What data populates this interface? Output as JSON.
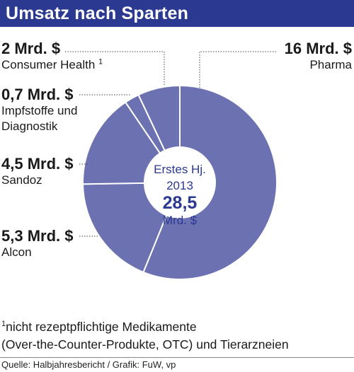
{
  "title": "Umsatz nach Sparten",
  "colors": {
    "header_bg": "#2b3990",
    "slice_fill": "#6c71b1",
    "slice_stroke": "#ffffff",
    "center_text": "#2b3990",
    "leader": "#444444"
  },
  "center": {
    "line1": "Erstes Hj.",
    "line2": "2013",
    "total": "28,5",
    "unit": "Mrd. $"
  },
  "chart_data": {
    "type": "pie",
    "title": "Umsatz nach Sparten",
    "total": 28.5,
    "unit": "Mrd. $",
    "slices": [
      {
        "name": "Pharma",
        "value": 16,
        "value_label": "16 Mrd. $"
      },
      {
        "name": "Alcon",
        "value": 5.3,
        "value_label": "5,3 Mrd. $"
      },
      {
        "name": "Sandoz",
        "value": 4.5,
        "value_label": "4,5 Mrd. $"
      },
      {
        "name": "Impfstoffe und Diagnostik",
        "value": 0.7,
        "value_label": "0,7 Mrd. $"
      },
      {
        "name": "Consumer Health",
        "value": 2,
        "value_label": "2 Mrd. $"
      }
    ]
  },
  "labels": {
    "consumer": {
      "value": "2 Mrd. $",
      "name": "Consumer Health",
      "mark": "1"
    },
    "pharma": {
      "value": "16 Mrd. $",
      "name": "Pharma"
    },
    "impf": {
      "value": "0,7 Mrd. $",
      "name_line1": "Impfstoffe und",
      "name_line2": "Diagnostik"
    },
    "sandoz": {
      "value": "4,5 Mrd. $",
      "name": "Sandoz"
    },
    "alcon": {
      "value": "5,3 Mrd. $",
      "name": "Alcon"
    }
  },
  "footnote": {
    "mark": "1",
    "line1": "nicht rezeptpflichtige Medikamente",
    "line2": "(Over-the-Counter-Produkte, OTC) und Tierarzneien"
  },
  "source": "Quelle: Halbjahresbericht / Grafik: FuW, vp"
}
